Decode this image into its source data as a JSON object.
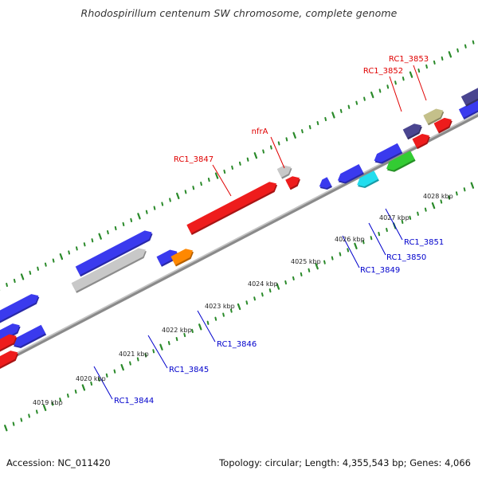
{
  "title": "Rhodospirillum centenum SW chromosome, complete genome",
  "footer": {
    "accession": "Accession: NC_011420",
    "summary": "Topology: circular; Length: 4,355,543 bp; Genes: 4,066"
  },
  "colors": {
    "backbone": "#8a8a8a",
    "tick": "#2a8a2a",
    "tick_label": "#222222",
    "upper_label": "#e00000",
    "lower_label": "#0000cc"
  },
  "kbp_labels": [
    "4019 kbp",
    "4020 kbp",
    "4021 kbp",
    "4022 kbp",
    "4023 kbp",
    "4024 kbp",
    "4025 kbp",
    "4026 kbp",
    "4027 kbp",
    "4028 kbp"
  ],
  "genes": [
    {
      "color": "#3a3aee",
      "strand": "+"
    },
    {
      "color": "#3a3aee",
      "strand": "+"
    },
    {
      "color": "#3a3aee",
      "strand": "+"
    },
    {
      "color": "#c8c8c8",
      "strand": "+"
    },
    {
      "color": "#3a3aee",
      "strand": "+"
    },
    {
      "color": "#ff8800",
      "strand": "+"
    },
    {
      "color": "#ee1c1c",
      "strand": "+"
    },
    {
      "color": "#c8c8c8",
      "strand": "+"
    },
    {
      "color": "#ee1c1c",
      "strand": "+"
    },
    {
      "color": "#3a3aee",
      "strand": "-"
    },
    {
      "color": "#3a3aee",
      "strand": "-"
    },
    {
      "color": "#22ddee",
      "strand": "-"
    },
    {
      "color": "#3a3aee",
      "strand": "-"
    },
    {
      "color": "#33cc33",
      "strand": "-"
    },
    {
      "color": "#4a4590",
      "strand": "+"
    },
    {
      "color": "#ee1c1c",
      "strand": "+"
    },
    {
      "color": "#c4c08a",
      "strand": "+"
    },
    {
      "color": "#ee1c1c",
      "strand": "+"
    },
    {
      "color": "#3a3aee",
      "strand": "+"
    },
    {
      "color": "#4a4590",
      "strand": "+"
    },
    {
      "color": "#3a3aee",
      "strand": "-"
    },
    {
      "color": "#ee1c1c",
      "strand": "+"
    },
    {
      "color": "#ee1c1c",
      "strand": "+"
    }
  ],
  "callouts": [
    {
      "text": "RC1_3847",
      "color": "#e00000"
    },
    {
      "text": "nfrA",
      "color": "#e00000"
    },
    {
      "text": "RC1_3852",
      "color": "#e00000"
    },
    {
      "text": "RC1_3853",
      "color": "#e00000"
    },
    {
      "text": "RC1_3844",
      "color": "#0000cc"
    },
    {
      "text": "RC1_3845",
      "color": "#0000cc"
    },
    {
      "text": "RC1_3846",
      "color": "#0000cc"
    },
    {
      "text": "RC1_3849",
      "color": "#0000cc"
    },
    {
      "text": "RC1_3850",
      "color": "#0000cc"
    },
    {
      "text": "RC1_3851",
      "color": "#0000cc"
    }
  ]
}
